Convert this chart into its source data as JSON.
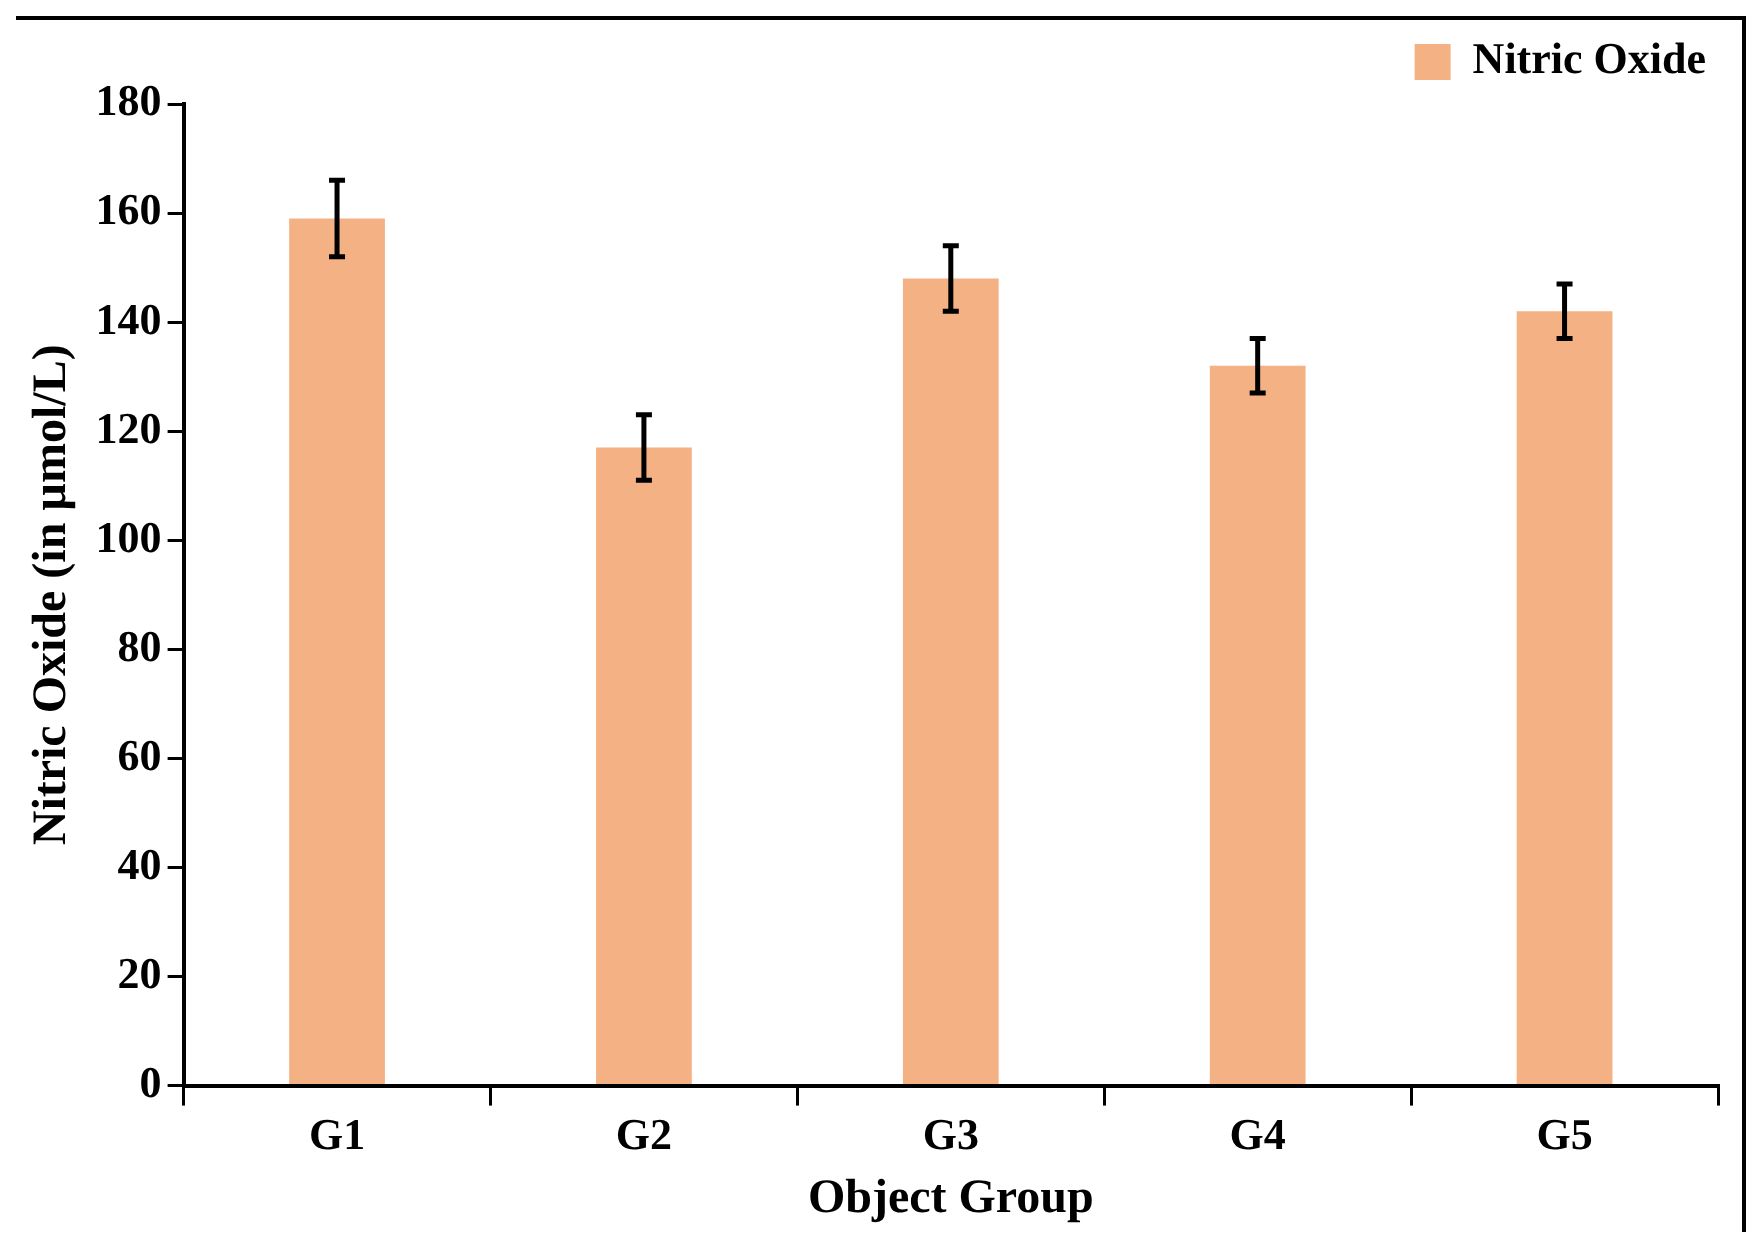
{
  "chart_data": {
    "type": "bar",
    "xlabel": "Object Group",
    "ylabel": "Nitric Oxide (in µmol/L)",
    "categories": [
      "G1",
      "G2",
      "G3",
      "G4",
      "G5"
    ],
    "series": [
      {
        "name": "Nitric Oxide",
        "color": "#f4b183",
        "values": [
          159,
          117,
          148,
          132,
          142
        ],
        "errors": [
          7,
          6,
          6,
          5,
          5
        ]
      }
    ],
    "ylim": [
      0,
      180
    ],
    "yticks": [
      0,
      20,
      40,
      60,
      80,
      100,
      120,
      140,
      160,
      180
    ],
    "grid": false,
    "legend": "top right"
  }
}
